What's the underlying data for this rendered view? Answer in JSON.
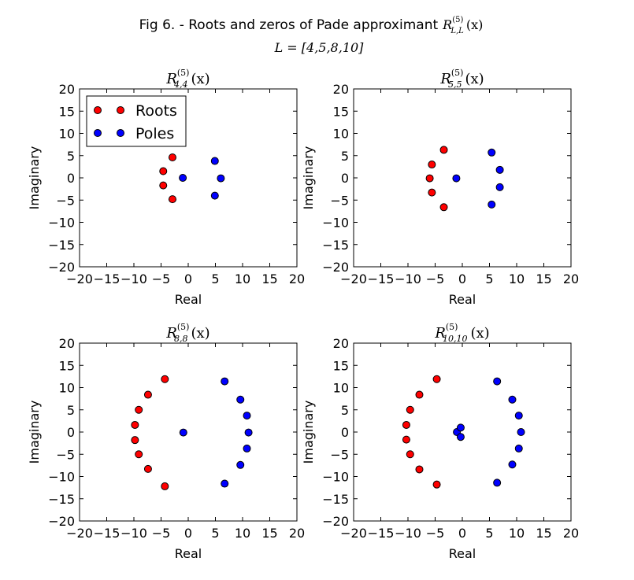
{
  "figure": {
    "title_prefix": "Fig 6. - Roots and zeros of Pade approximant",
    "title_math_base": "R",
    "title_math_sup": "(5)",
    "title_math_sub": "L,L",
    "title_math_arg": "(x)",
    "subtitle": "L = [4,5,8,10]"
  },
  "colors": {
    "roots": "#ff0000",
    "poles": "#0000ff",
    "marker_edge": "#000000"
  },
  "legend": {
    "placement": "upper-left of first subplot",
    "entries": [
      {
        "label": "Roots",
        "color": "#ff0000"
      },
      {
        "label": "Poles",
        "color": "#0000ff"
      }
    ]
  },
  "chart_data": [
    {
      "type": "scatter",
      "title_base": "R",
      "title_sup": "(5)",
      "title_sub": "4,4",
      "title_arg": "(x)",
      "xlabel": "Real",
      "ylabel": "Imaginary",
      "xlim": [
        -20,
        20
      ],
      "ylim": [
        -20,
        20
      ],
      "xticks": [
        "−20",
        "−15",
        "−10",
        "−5",
        "0",
        "5",
        "10",
        "15",
        "20"
      ],
      "yticks": [
        "20",
        "15",
        "10",
        "5",
        "0",
        "−5",
        "−10",
        "−15",
        "−20"
      ],
      "series": [
        {
          "name": "Roots",
          "points": [
            [
              -4.6,
              1.5
            ],
            [
              -4.6,
              -1.7
            ],
            [
              -2.9,
              4.6
            ],
            [
              -2.9,
              -4.8
            ]
          ]
        },
        {
          "name": "Poles",
          "points": [
            [
              -1.0,
              0.0
            ],
            [
              4.9,
              3.8
            ],
            [
              4.9,
              -4.0
            ],
            [
              6.0,
              -0.1
            ]
          ]
        }
      ]
    },
    {
      "type": "scatter",
      "title_base": "R",
      "title_sup": "(5)",
      "title_sub": "5,5",
      "title_arg": "(x)",
      "xlabel": "Real",
      "ylabel": "Imaginary",
      "xlim": [
        -20,
        20
      ],
      "ylim": [
        -20,
        20
      ],
      "xticks": [
        "−20",
        "−15",
        "−10",
        "−5",
        "0",
        "5",
        "10",
        "15",
        "20"
      ],
      "yticks": [
        "20",
        "15",
        "10",
        "5",
        "0",
        "−5",
        "−10",
        "−15",
        "−20"
      ],
      "series": [
        {
          "name": "Roots",
          "points": [
            [
              -3.4,
              6.3
            ],
            [
              -5.6,
              3.0
            ],
            [
              -6.0,
              -0.1
            ],
            [
              -5.6,
              -3.3
            ],
            [
              -3.4,
              -6.6
            ]
          ]
        },
        {
          "name": "Poles",
          "points": [
            [
              -1.1,
              -0.1
            ],
            [
              5.4,
              5.7
            ],
            [
              6.9,
              1.8
            ],
            [
              6.9,
              -2.1
            ],
            [
              5.4,
              -6.0
            ]
          ]
        }
      ]
    },
    {
      "type": "scatter",
      "title_base": "R",
      "title_sup": "(5)",
      "title_sub": "8,8",
      "title_arg": "(x)",
      "xlabel": "Real",
      "ylabel": "Imaginary",
      "xlim": [
        -20,
        20
      ],
      "ylim": [
        -20,
        20
      ],
      "xticks": [
        "−20",
        "−15",
        "−10",
        "−5",
        "0",
        "5",
        "10",
        "15",
        "20"
      ],
      "yticks": [
        "20",
        "15",
        "10",
        "5",
        "0",
        "−5",
        "−10",
        "−15",
        "−20"
      ],
      "series": [
        {
          "name": "Roots",
          "points": [
            [
              -4.3,
              11.9
            ],
            [
              -7.4,
              8.4
            ],
            [
              -9.1,
              5.0
            ],
            [
              -9.8,
              1.6
            ],
            [
              -9.8,
              -1.8
            ],
            [
              -9.1,
              -5.0
            ],
            [
              -7.4,
              -8.3
            ],
            [
              -4.3,
              -12.2
            ]
          ]
        },
        {
          "name": "Poles",
          "points": [
            [
              -0.9,
              -0.1
            ],
            [
              6.7,
              11.4
            ],
            [
              9.6,
              7.3
            ],
            [
              10.8,
              3.7
            ],
            [
              11.1,
              -0.1
            ],
            [
              10.8,
              -3.7
            ],
            [
              9.6,
              -7.4
            ],
            [
              6.7,
              -11.6
            ]
          ]
        }
      ]
    },
    {
      "type": "scatter",
      "title_base": "R",
      "title_sup": "(5)",
      "title_sub": "10,10",
      "title_arg": "(x)",
      "xlabel": "Real",
      "ylabel": "Imaginary",
      "xlim": [
        -20,
        20
      ],
      "ylim": [
        -20,
        20
      ],
      "xticks": [
        "−20",
        "−15",
        "−10",
        "−5",
        "0",
        "5",
        "10",
        "15",
        "20"
      ],
      "yticks": [
        "20",
        "15",
        "10",
        "5",
        "0",
        "−5",
        "−10",
        "−15",
        "−20"
      ],
      "series": [
        {
          "name": "Roots",
          "points": [
            [
              -4.7,
              11.9
            ],
            [
              -7.9,
              8.4
            ],
            [
              -9.6,
              5.0
            ],
            [
              -10.3,
              1.6
            ],
            [
              -10.3,
              -1.7
            ],
            [
              -9.6,
              -5.0
            ],
            [
              -7.9,
              -8.4
            ],
            [
              -4.7,
              -11.8
            ]
          ]
        },
        {
          "name": "Poles",
          "points": [
            [
              -1.0,
              0.0
            ],
            [
              -0.3,
              1.0
            ],
            [
              -0.3,
              -1.1
            ],
            [
              6.4,
              11.4
            ],
            [
              9.2,
              7.3
            ],
            [
              10.4,
              3.7
            ],
            [
              10.8,
              0.0
            ],
            [
              10.4,
              -3.7
            ],
            [
              9.2,
              -7.3
            ],
            [
              6.4,
              -11.4
            ]
          ]
        }
      ]
    }
  ]
}
